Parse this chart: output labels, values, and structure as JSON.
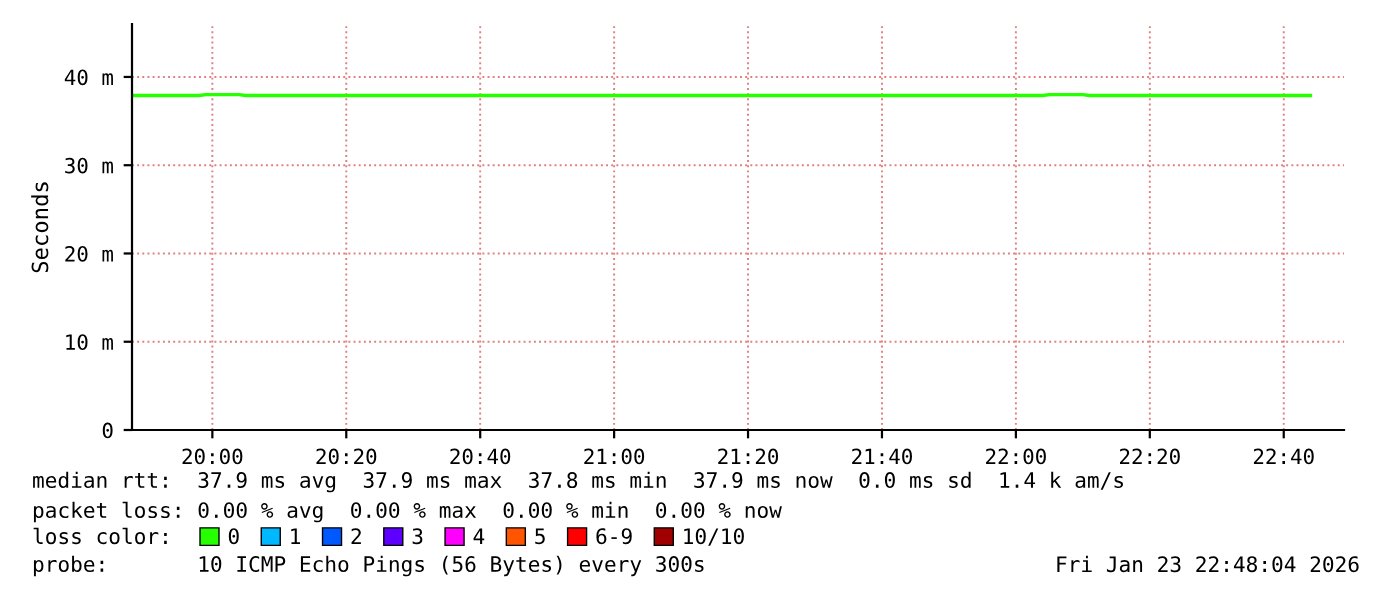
{
  "chart_data": {
    "type": "line",
    "ylabel": "Seconds",
    "x": [
      "2026-01-23T19:48",
      "2026-01-23T19:58",
      "2026-01-23T19:59",
      "2026-01-23T20:04",
      "2026-01-23T20:05",
      "2026-01-23T22:04",
      "2026-01-23T22:05",
      "2026-01-23T22:10",
      "2026-01-23T22:11",
      "2026-01-23T22:44"
    ],
    "series": [
      {
        "name": "0",
        "color": "#26ff00",
        "values": [
          37.9,
          37.9,
          38.0,
          38.0,
          37.9,
          37.9,
          38.0,
          38.0,
          37.9,
          37.9
        ]
      },
      {
        "name": "1",
        "color": "#00b8ff",
        "values": [
          null,
          null,
          null,
          null,
          null,
          null,
          null,
          null,
          null,
          null
        ]
      },
      {
        "name": "2",
        "color": "#0059ff",
        "values": [
          null,
          null,
          null,
          null,
          null,
          null,
          null,
          null,
          null,
          null
        ]
      },
      {
        "name": "3",
        "color": "#5e00ff",
        "values": [
          null,
          null,
          null,
          null,
          null,
          null,
          null,
          null,
          null,
          null
        ]
      },
      {
        "name": "4",
        "color": "#ff00ff",
        "values": [
          null,
          null,
          null,
          null,
          null,
          null,
          null,
          null,
          null,
          null
        ]
      },
      {
        "name": "5",
        "color": "#ff5500",
        "values": [
          null,
          null,
          null,
          null,
          null,
          null,
          null,
          null,
          null,
          null
        ]
      },
      {
        "name": "6-9",
        "color": "#ff0000",
        "values": [
          null,
          null,
          null,
          null,
          null,
          null,
          null,
          null,
          null,
          null
        ]
      },
      {
        "name": "10/10",
        "color": "#a10000",
        "values": [
          null,
          null,
          null,
          null,
          null,
          null,
          null,
          null,
          null,
          null
        ]
      }
    ],
    "legend_title": "loss color:",
    "legend": "bottom",
    "xlim": [
      "2026-01-23T19:48",
      "2026-01-23T22:49"
    ],
    "xticks": [
      {
        "value": "2026-01-23T20:00",
        "label": "20:00"
      },
      {
        "value": "2026-01-23T20:20",
        "label": "20:20"
      },
      {
        "value": "2026-01-23T20:40",
        "label": "20:40"
      },
      {
        "value": "2026-01-23T21:00",
        "label": "21:00"
      },
      {
        "value": "2026-01-23T21:20",
        "label": "21:20"
      },
      {
        "value": "2026-01-23T21:40",
        "label": "21:40"
      },
      {
        "value": "2026-01-23T22:00",
        "label": "22:00"
      },
      {
        "value": "2026-01-23T22:20",
        "label": "22:20"
      },
      {
        "value": "2026-01-23T22:40",
        "label": "22:40"
      }
    ],
    "ylim": [
      0,
      46
    ],
    "yticks": [
      {
        "value": 0,
        "label": "0"
      },
      {
        "value": 10,
        "label": "10 m"
      },
      {
        "value": 20,
        "label": "20 m"
      },
      {
        "value": 30,
        "label": "30 m"
      },
      {
        "value": 40,
        "label": "40 m"
      }
    ],
    "grid": true,
    "line_style": "solid",
    "marker": "none",
    "annotations": [
      "median rtt:  37.9 ms avg  37.9 ms max  37.8 ms min  37.9 ms now  0.0 ms sd  1.4 k am/s",
      "packet loss: 0.00 % avg  0.00 % max  0.00 % min  0.00 % now",
      "probe:       10 ICMP Echo Pings (56 Bytes) every 300s",
      "Fri Jan 23 22:48:04 2026"
    ]
  }
}
